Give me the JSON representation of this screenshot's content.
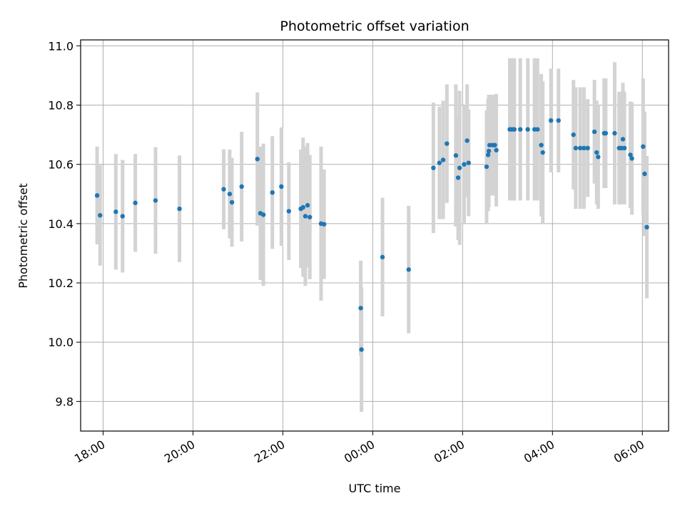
{
  "chart_data": {
    "type": "scatter",
    "title": "Photometric offset variation",
    "xlabel": "UTC time",
    "ylabel": "Photometric offset",
    "x_unit": "UTC time (hours; values above 24 are after midnight)",
    "xlim": [
      "17:30",
      "06:35"
    ],
    "ylim": [
      9.7,
      11.02
    ],
    "grid": true,
    "x_ticks": [
      "18:00",
      "20:00",
      "22:00",
      "00:00",
      "02:00",
      "04:00",
      "06:00"
    ],
    "y_ticks": [
      "9.8",
      "10.0",
      "10.2",
      "10.4",
      "10.6",
      "10.8",
      "11.0"
    ],
    "colors": {
      "marker": "#1f77b4",
      "errorbar": "#d3d3d3",
      "grid": "#b0b0b0"
    },
    "series": [
      {
        "points": [
          [
            "17:52",
            10.495,
            0.165
          ],
          [
            "17:56",
            10.428,
            0.17
          ],
          [
            "18:17",
            10.44,
            0.195
          ],
          [
            "18:26",
            10.425,
            0.19
          ],
          [
            "18:43",
            10.47,
            0.165
          ],
          [
            "19:10",
            10.478,
            0.18
          ],
          [
            "19:42",
            10.45,
            0.18
          ],
          [
            "20:41",
            10.516,
            0.135
          ],
          [
            "20:49",
            10.5,
            0.15
          ],
          [
            "20:52",
            10.472,
            0.15
          ],
          [
            "21:05",
            10.525,
            0.185
          ],
          [
            "21:26",
            10.618,
            0.225
          ],
          [
            "21:30",
            10.435,
            0.225
          ],
          [
            "21:34",
            10.43,
            0.24
          ],
          [
            "21:46",
            10.505,
            0.19
          ],
          [
            "21:58",
            10.525,
            0.2
          ],
          [
            "22:08",
            10.442,
            0.165
          ],
          [
            "22:24",
            10.45,
            0.2
          ],
          [
            "22:27",
            10.455,
            0.235
          ],
          [
            "22:30",
            10.425,
            0.235
          ],
          [
            "22:33",
            10.462,
            0.21
          ],
          [
            "22:36",
            10.422,
            0.21
          ],
          [
            "22:51",
            10.4,
            0.26
          ],
          [
            "22:55",
            10.398,
            0.185
          ],
          [
            "23:44",
            10.115,
            0.16
          ],
          [
            "23:45",
            9.975,
            0.21
          ],
          [
            "00:13",
            10.287,
            0.2
          ],
          [
            "00:48",
            10.245,
            0.215
          ],
          [
            "01:21",
            10.588,
            0.22
          ],
          [
            "01:29",
            10.605,
            0.19
          ],
          [
            "01:34",
            10.615,
            0.2
          ],
          [
            "01:39",
            10.67,
            0.2
          ],
          [
            "01:51",
            10.63,
            0.24
          ],
          [
            "01:54",
            10.555,
            0.21
          ],
          [
            "01:56",
            10.588,
            0.26
          ],
          [
            "02:02",
            10.6,
            0.2
          ],
          [
            "02:06",
            10.68,
            0.19
          ],
          [
            "02:08",
            10.605,
            0.18
          ],
          [
            "02:32",
            10.592,
            0.19
          ],
          [
            "02:34",
            10.632,
            0.19
          ],
          [
            "02:35",
            10.645,
            0.19
          ],
          [
            "02:36",
            10.665,
            0.17
          ],
          [
            "02:40",
            10.665,
            0.17
          ],
          [
            "02:43",
            10.665,
            0.17
          ],
          [
            "02:45",
            10.648,
            0.19
          ],
          [
            "03:03",
            10.718,
            0.24
          ],
          [
            "03:06",
            10.718,
            0.24
          ],
          [
            "03:09",
            10.718,
            0.24
          ],
          [
            "03:17",
            10.718,
            0.24
          ],
          [
            "03:27",
            10.718,
            0.24
          ],
          [
            "03:36",
            10.718,
            0.24
          ],
          [
            "03:40",
            10.718,
            0.24
          ],
          [
            "03:45",
            10.665,
            0.24
          ],
          [
            "03:47",
            10.64,
            0.24
          ],
          [
            "03:58",
            10.748,
            0.175
          ],
          [
            "04:08",
            10.748,
            0.175
          ],
          [
            "04:28",
            10.7,
            0.185
          ],
          [
            "04:31",
            10.655,
            0.205
          ],
          [
            "04:37",
            10.655,
            0.205
          ],
          [
            "04:42",
            10.655,
            0.205
          ],
          [
            "04:47",
            10.655,
            0.165
          ],
          [
            "04:56",
            10.71,
            0.175
          ],
          [
            "04:59",
            10.64,
            0.175
          ],
          [
            "05:01",
            10.625,
            0.175
          ],
          [
            "05:09",
            10.705,
            0.185
          ],
          [
            "05:11",
            10.705,
            0.185
          ],
          [
            "05:23",
            10.705,
            0.24
          ],
          [
            "05:29",
            10.655,
            0.19
          ],
          [
            "05:32",
            10.655,
            0.19
          ],
          [
            "05:34",
            10.685,
            0.19
          ],
          [
            "05:36",
            10.655,
            0.19
          ],
          [
            "05:44",
            10.632,
            0.18
          ],
          [
            "05:46",
            10.62,
            0.19
          ],
          [
            "06:01",
            10.66,
            0.23
          ],
          [
            "06:03",
            10.568,
            0.21
          ],
          [
            "06:06",
            10.388,
            0.24
          ]
        ]
      }
    ]
  }
}
